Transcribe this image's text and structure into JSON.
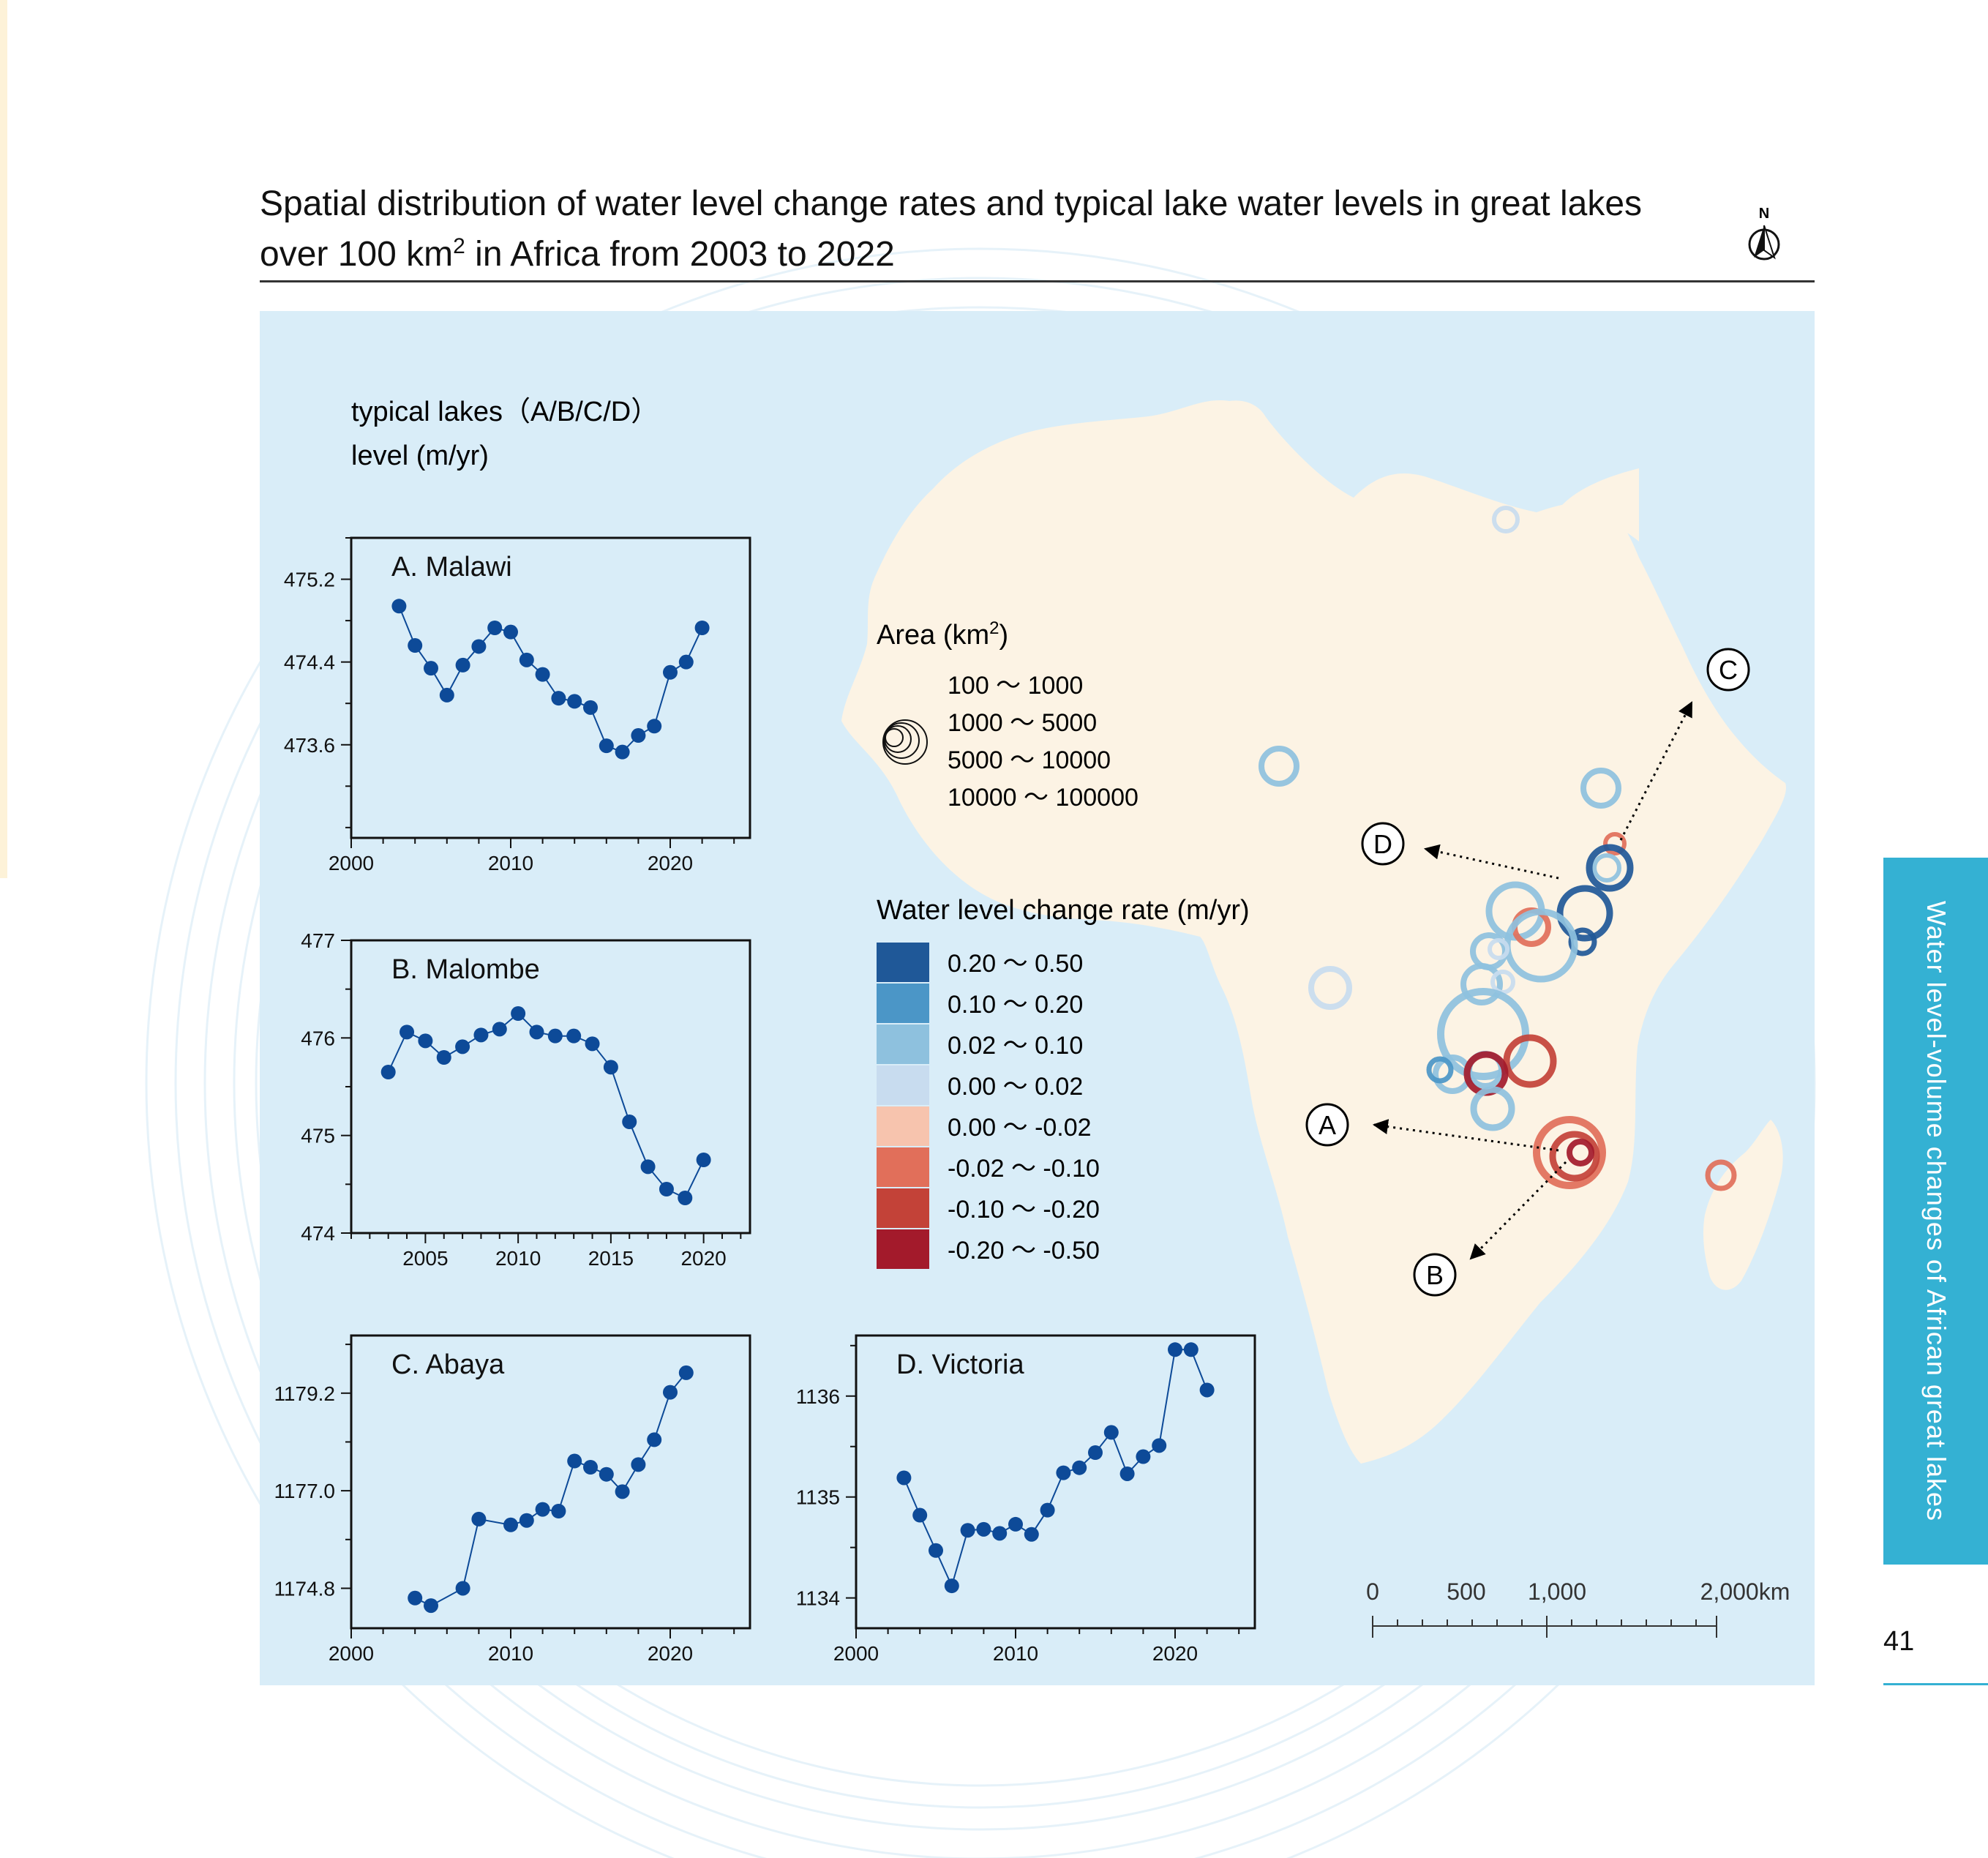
{
  "title": {
    "line1": "Spatial distribution of water level change rates and typical lake water levels in great lakes",
    "line2_prefix": "over 100 km",
    "line2_sup": "2",
    "line2_suffix": " in Africa from 2003 to 2022"
  },
  "north_label": "N",
  "typical_lakes_header": {
    "line1": "typical lakes（A/B/C/D）",
    "line2": "level (m/yr)"
  },
  "area_legend": {
    "title_prefix": "Area (km",
    "title_sup": "2",
    "title_suffix": ")",
    "classes": [
      "100 ～ 1000",
      "1000 ～ 5000",
      "5000 ～ 10000",
      "10000 ～ 100000"
    ]
  },
  "rate_legend": {
    "title": "Water level change rate (m/yr)",
    "classes": [
      {
        "label": "0.20 ～ 0.50",
        "color": "#1f5898"
      },
      {
        "label": "0.10 ～ 0.20",
        "color": "#4b96c7"
      },
      {
        "label": "0.02 ～ 0.10",
        "color": "#8ec1de"
      },
      {
        "label": "0.00 ～ 0.02",
        "color": "#c8dcef"
      },
      {
        "label": "0.00 ～ -0.02",
        "color": "#f7c4ae"
      },
      {
        "label": "-0.02 ～ -0.10",
        "color": "#e16f5a"
      },
      {
        "label": "-0.10 ～ -0.20",
        "color": "#c34238"
      },
      {
        "label": "-0.20 ～ -0.50",
        "color": "#a31a2b"
      }
    ]
  },
  "scale_bar": {
    "labels": [
      "0",
      "500",
      "1,000",
      "2,000km"
    ]
  },
  "callouts": [
    "A",
    "B",
    "C",
    "D"
  ],
  "side_tab": "Water level-volume changes of African great lakes",
  "page_number": "41",
  "colors": {
    "panel_bg": "#d9edf8",
    "land": "#fcf3e4",
    "series": "#0d4a98",
    "tab": "#34b1d3"
  },
  "chart_data": [
    {
      "type": "line",
      "title": "A. Malawi",
      "xlabel": "",
      "ylabel": "",
      "xlim": [
        2000,
        2025
      ],
      "ylim": [
        472.7,
        475.6
      ],
      "yticks": [
        473.6,
        474.4,
        475.2
      ],
      "ytick_labels": [
        "473.6",
        "474.4",
        "475.2"
      ],
      "xticks": [
        2000,
        2010,
        2020
      ],
      "xtick_labels": [
        "2000",
        "2010",
        "2020"
      ],
      "series": [
        {
          "x": [
            2003,
            2004,
            2005,
            2006,
            2007,
            2008,
            2009,
            2010,
            2011,
            2012,
            2013,
            2014,
            2015,
            2016,
            2017,
            2018,
            2019,
            2020,
            2021,
            2022
          ],
          "y": [
            474.94,
            474.56,
            474.34,
            474.08,
            474.37,
            474.55,
            474.73,
            474.69,
            474.42,
            474.28,
            474.05,
            474.02,
            473.96,
            473.59,
            473.53,
            473.69,
            473.78,
            474.3,
            474.4,
            474.73
          ]
        }
      ]
    },
    {
      "type": "line",
      "title": "B. Malombe",
      "xlabel": "",
      "ylabel": "",
      "xlim": [
        2001,
        2022.5
      ],
      "ylim": [
        474,
        477
      ],
      "yticks": [
        474,
        475,
        476,
        477
      ],
      "ytick_labels": [
        "474",
        "475",
        "476",
        "477"
      ],
      "xticks": [
        2005,
        2010,
        2015,
        2020
      ],
      "xtick_labels": [
        "2005",
        "2010",
        "2015",
        "2020"
      ],
      "series": [
        {
          "x": [
            2003,
            2004,
            2005,
            2006,
            2007,
            2008,
            2009,
            2010,
            2011,
            2012,
            2013,
            2014,
            2015,
            2016,
            2017,
            2018,
            2019,
            2020
          ],
          "y": [
            475.65,
            476.06,
            475.97,
            475.8,
            475.91,
            476.03,
            476.09,
            476.25,
            476.06,
            476.02,
            476.02,
            475.94,
            475.7,
            475.14,
            474.68,
            474.45,
            474.36,
            474.75
          ]
        }
      ]
    },
    {
      "type": "line",
      "title": "C. Abaya",
      "xlabel": "",
      "ylabel": "",
      "xlim": [
        2000,
        2025
      ],
      "ylim": [
        1173.9,
        1180.5
      ],
      "yticks": [
        1174.8,
        1177.0,
        1179.2
      ],
      "ytick_labels": [
        "1174.8",
        "1177.0",
        "1179.2"
      ],
      "xticks": [
        2000,
        2010,
        2020
      ],
      "xtick_labels": [
        "2000",
        "2010",
        "2020"
      ],
      "series": [
        {
          "x": [
            2004,
            2005,
            2007,
            2008,
            2010,
            2011,
            2012,
            2013,
            2014,
            2015,
            2016,
            2017,
            2018,
            2019,
            2020,
            2021
          ],
          "y": [
            1174.58,
            1174.41,
            1174.8,
            1176.36,
            1176.23,
            1176.33,
            1176.58,
            1176.54,
            1177.67,
            1177.53,
            1177.37,
            1176.98,
            1177.59,
            1178.15,
            1179.22,
            1179.66
          ]
        }
      ]
    },
    {
      "type": "line",
      "title": "D. Victoria",
      "xlabel": "",
      "ylabel": "",
      "xlim": [
        2000,
        2025
      ],
      "ylim": [
        1133.7,
        1136.6
      ],
      "yticks": [
        1134,
        1135,
        1136
      ],
      "ytick_labels": [
        "1134",
        "1135",
        "1136"
      ],
      "xticks": [
        2000,
        2010,
        2020
      ],
      "xtick_labels": [
        "2000",
        "2010",
        "2020"
      ],
      "series": [
        {
          "x": [
            2003,
            2004,
            2005,
            2006,
            2007,
            2008,
            2009,
            2010,
            2011,
            2012,
            2013,
            2014,
            2015,
            2016,
            2017,
            2018,
            2019,
            2020,
            2021,
            2022
          ],
          "y": [
            1135.19,
            1134.82,
            1134.47,
            1134.12,
            1134.67,
            1134.68,
            1134.64,
            1134.73,
            1134.63,
            1134.87,
            1135.24,
            1135.29,
            1135.44,
            1135.64,
            1135.23,
            1135.4,
            1135.51,
            1136.46,
            1136.46,
            1136.06
          ]
        }
      ]
    }
  ]
}
